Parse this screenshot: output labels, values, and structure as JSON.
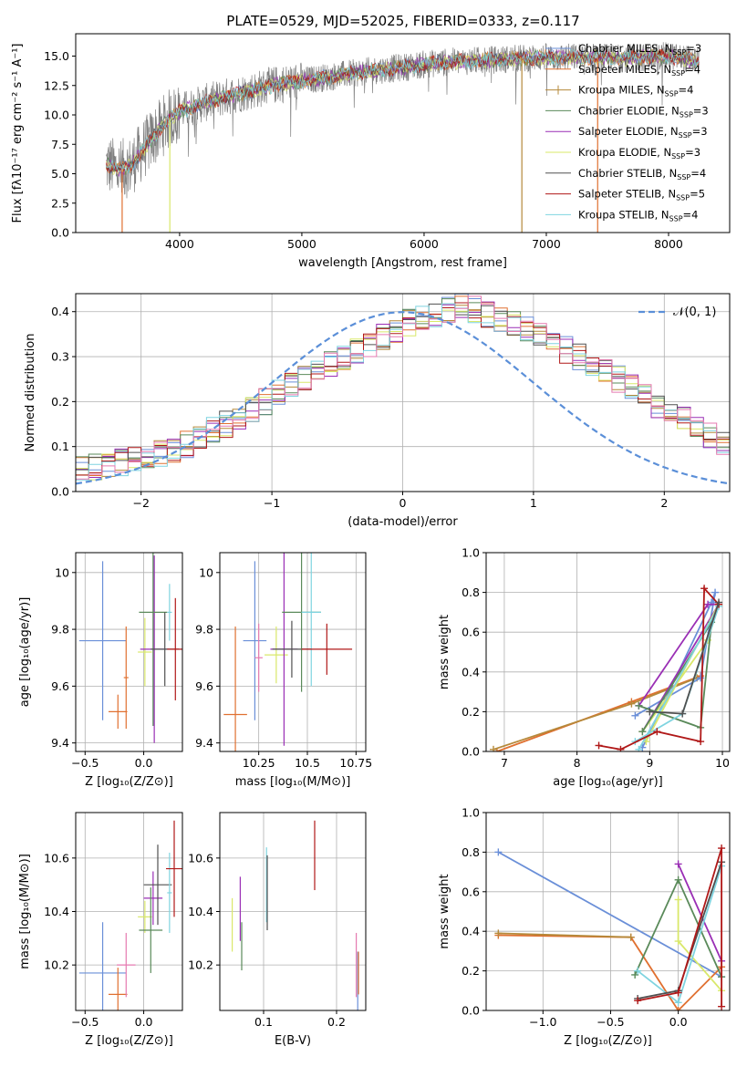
{
  "title": "PLATE=0529, MJD=52025, FIBERID=0333, z=0.117",
  "colors": {
    "chabrier_miles": "#6a8fd8",
    "salpeter_miles": "#e07030",
    "kroupa_miles": "#b5893a",
    "chabrier_elodie": "#5a8a5a",
    "salpeter_elodie": "#9a2fb5",
    "kroupa_elodie": "#d9e86a",
    "chabrier_stelib": "#505050",
    "salpeter_stelib": "#b01818",
    "kroupa_stelib": "#7fd4e0",
    "data": "#808080",
    "gaussian": "#5b8fd8",
    "pink": "#e57ab0",
    "grid": "#b0b0b0"
  },
  "chart_data": [
    {
      "id": "spectrum",
      "type": "line",
      "title": "PLATE=0529, MJD=52025, FIBERID=0333, z=0.117",
      "xlabel": "wavelength [Angstrom, rest frame]",
      "ylabel": "Flux [fλ10⁻¹⁷ erg cm⁻² s⁻¹ A⁻¹]",
      "xlim": [
        3150,
        8500
      ],
      "ylim": [
        0,
        16.9
      ],
      "xticks": [
        4000,
        5000,
        6000,
        7000,
        8000
      ],
      "yticks": [
        0.0,
        2.5,
        5.0,
        7.5,
        10.0,
        12.5,
        15.0
      ],
      "grid": false,
      "legend_position": "top-right",
      "continuum": {
        "x": [
          3400,
          3500,
          3600,
          3700,
          3800,
          3900,
          4000,
          4200,
          4400,
          4600,
          4800,
          5000,
          5200,
          5400,
          5600,
          5800,
          6000,
          6200,
          6400,
          6600,
          6800,
          7000,
          7200,
          7400,
          7600,
          7800,
          8000,
          8250
        ],
        "y": [
          5.8,
          5.3,
          5.6,
          7.0,
          8.3,
          9.5,
          10.3,
          11.0,
          11.6,
          12.1,
          12.6,
          12.9,
          13.2,
          13.5,
          13.8,
          14.0,
          14.3,
          14.5,
          14.6,
          14.7,
          14.8,
          14.9,
          14.9,
          14.9,
          14.8,
          14.9,
          15.0,
          14.6
        ]
      },
      "series": [
        {
          "name": "Chabrier MILES, N_SSP=3",
          "label_main": "Chabrier MILES, N",
          "label_sub": "SSP",
          "label_tail": "=3",
          "color_key": "chabrier_miles"
        },
        {
          "name": "Salpeter MILES, N_SSP=4",
          "label_main": "Salpeter MILES, N",
          "label_sub": "SSP",
          "label_tail": "=4",
          "color_key": "salpeter_miles"
        },
        {
          "name": "Kroupa MILES, N_SSP=4",
          "label_main": "Kroupa MILES, N",
          "label_sub": "SSP",
          "label_tail": "=4",
          "color_key": "kroupa_miles"
        },
        {
          "name": "Chabrier ELODIE, N_SSP=3",
          "label_main": "Chabrier ELODIE, N",
          "label_sub": "SSP",
          "label_tail": "=3",
          "color_key": "chabrier_elodie"
        },
        {
          "name": "Salpeter ELODIE, N_SSP=3",
          "label_main": "Salpeter ELODIE, N",
          "label_sub": "SSP",
          "label_tail": "=3",
          "color_key": "salpeter_elodie"
        },
        {
          "name": "Kroupa ELODIE, N_SSP=3",
          "label_main": "Kroupa ELODIE, N",
          "label_sub": "SSP",
          "label_tail": "=3",
          "color_key": "kroupa_elodie"
        },
        {
          "name": "Chabrier STELIB, N_SSP=4",
          "label_main": "Chabrier STELIB, N",
          "label_sub": "SSP",
          "label_tail": "=4",
          "color_key": "chabrier_stelib"
        },
        {
          "name": "Salpeter STELIB, N_SSP=5",
          "label_main": "Salpeter STELIB, N",
          "label_sub": "SSP",
          "label_tail": "=5",
          "color_key": "salpeter_stelib"
        },
        {
          "name": "Kroupa STELIB, N_SSP=4",
          "label_main": "Kroupa STELIB, N",
          "label_sub": "SSP",
          "label_tail": "=4",
          "color_key": "kroupa_stelib"
        }
      ],
      "drops": [
        {
          "x": 3530,
          "color_key": "salpeter_miles"
        },
        {
          "x": 3920,
          "color_key": "kroupa_elodie"
        },
        {
          "x": 6800,
          "color_key": "kroupa_miles"
        },
        {
          "x": 7420,
          "color_key": "salpeter_miles"
        }
      ]
    },
    {
      "id": "residuals",
      "type": "histogram",
      "xlabel": "(data-model)/error",
      "ylabel": "Normed distribution",
      "xlim": [
        -2.5,
        2.5
      ],
      "ylim": [
        0,
        0.44
      ],
      "xticks": [
        -2,
        -1,
        0,
        1,
        2
      ],
      "xtick_labels": [
        "−2",
        "−1",
        "0",
        "1",
        "2"
      ],
      "yticks": [
        0.0,
        0.1,
        0.2,
        0.3,
        0.4
      ],
      "grid": true,
      "legend": "𝒩(0, 1)",
      "bin_width": 0.1,
      "base_hist": [
        0.05,
        0.055,
        0.06,
        0.065,
        0.07,
        0.075,
        0.085,
        0.095,
        0.105,
        0.12,
        0.135,
        0.15,
        0.165,
        0.18,
        0.2,
        0.22,
        0.24,
        0.255,
        0.27,
        0.285,
        0.3,
        0.315,
        0.33,
        0.345,
        0.36,
        0.375,
        0.385,
        0.395,
        0.405,
        0.41,
        0.405,
        0.395,
        0.385,
        0.375,
        0.36,
        0.345,
        0.33,
        0.315,
        0.3,
        0.285,
        0.265,
        0.25,
        0.23,
        0.21,
        0.19,
        0.175,
        0.16,
        0.14,
        0.125,
        0.11,
        0.1
      ]
    },
    {
      "id": "age_vs_Z",
      "type": "errorbar",
      "xlabel": "Z [log₁₀(Z/Z⊙)]",
      "ylabel": "age  [log₁₀(age/yr)]",
      "xlim": [
        -0.58,
        0.33
      ],
      "ylim": [
        9.37,
        10.07
      ],
      "xticks": [
        -0.5,
        0.0
      ],
      "xtick_labels": [
        "−0.5",
        "0.0"
      ],
      "yticks": [
        9.4,
        9.6,
        9.8,
        10.0
      ],
      "grid": true,
      "points": [
        {
          "x": -0.35,
          "y": 9.76,
          "xerr": 0.2,
          "yerr": 0.28,
          "color_key": "chabrier_miles"
        },
        {
          "x": -0.22,
          "y": 9.51,
          "xerr": 0.08,
          "yerr": 0.06,
          "color_key": "salpeter_miles"
        },
        {
          "x": -0.15,
          "y": 9.63,
          "xerr": 0.02,
          "yerr": 0.18,
          "color_key": "salpeter_miles"
        },
        {
          "x": 0.01,
          "y": 9.72,
          "xerr": 0.06,
          "yerr": 0.12,
          "color_key": "kroupa_elodie"
        },
        {
          "x": 0.09,
          "y": 9.73,
          "xerr": 0.12,
          "yerr": 0.33,
          "color_key": "salpeter_elodie"
        },
        {
          "x": 0.08,
          "y": 9.86,
          "xerr": 0.12,
          "yerr": 0.4,
          "color_key": "chabrier_elodie"
        },
        {
          "x": 0.18,
          "y": 9.73,
          "xerr": 0.12,
          "yerr": 0.13,
          "color_key": "chabrier_stelib"
        },
        {
          "x": 0.22,
          "y": 9.86,
          "xerr": 0.02,
          "yerr": 0.1,
          "color_key": "kroupa_stelib"
        },
        {
          "x": 0.27,
          "y": 9.73,
          "xerr": 0.07,
          "yerr": 0.18,
          "color_key": "salpeter_stelib"
        }
      ]
    },
    {
      "id": "age_vs_mass",
      "type": "errorbar",
      "xlabel": "mass [log₁₀(M/M⊙)]",
      "ylabel": "",
      "xlim": [
        10.05,
        10.8
      ],
      "ylim": [
        9.37,
        10.07
      ],
      "xticks": [
        10.25,
        10.5,
        10.75
      ],
      "yticks": [
        9.4,
        9.6,
        9.8,
        10.0
      ],
      "grid": true,
      "points": [
        {
          "x": 10.13,
          "y": 9.5,
          "xerr": 0.06,
          "yerr": 0.31,
          "color_key": "salpeter_miles"
        },
        {
          "x": 10.23,
          "y": 9.76,
          "xerr": 0.06,
          "yerr": 0.28,
          "color_key": "chabrier_miles"
        },
        {
          "x": 10.25,
          "y": 9.7,
          "xerr": 0.02,
          "yerr": 0.12,
          "color_key": "pink"
        },
        {
          "x": 10.34,
          "y": 9.71,
          "xerr": 0.06,
          "yerr": 0.1,
          "color_key": "kroupa_elodie"
        },
        {
          "x": 10.38,
          "y": 9.73,
          "xerr": 0.07,
          "yerr": 0.34,
          "color_key": "salpeter_elodie"
        },
        {
          "x": 10.42,
          "y": 9.73,
          "xerr": 0.1,
          "yerr": 0.1,
          "color_key": "chabrier_stelib"
        },
        {
          "x": 10.47,
          "y": 9.86,
          "xerr": 0.1,
          "yerr": 0.28,
          "color_key": "chabrier_elodie"
        },
        {
          "x": 10.52,
          "y": 9.86,
          "xerr": 0.05,
          "yerr": 0.26,
          "color_key": "kroupa_stelib"
        },
        {
          "x": 10.6,
          "y": 9.73,
          "xerr": 0.13,
          "yerr": 0.09,
          "color_key": "salpeter_stelib"
        }
      ]
    },
    {
      "id": "mw_vs_age",
      "type": "line",
      "xlabel": "age  [log₁₀(age/yr)]",
      "ylabel": "mass weight",
      "xlim": [
        6.75,
        10.1
      ],
      "ylim": [
        0,
        1.0
      ],
      "xticks": [
        7,
        8,
        9,
        10
      ],
      "yticks": [
        0.0,
        0.2,
        0.4,
        0.6,
        0.8,
        1.0
      ],
      "grid": true,
      "series": [
        {
          "color_key": "salpeter_miles",
          "x": [
            6.9,
            8.75,
            9.7
          ],
          "y": [
            0.0,
            0.25,
            0.38
          ]
        },
        {
          "color_key": "kroupa_miles",
          "x": [
            6.85,
            8.75,
            9.65
          ],
          "y": [
            0.01,
            0.24,
            0.37
          ]
        },
        {
          "color_key": "chabrier_miles",
          "x": [
            8.8,
            9.7,
            9.9,
            9.85,
            8.9
          ],
          "y": [
            0.18,
            0.37,
            0.8,
            0.75,
            0.02
          ]
        },
        {
          "color_key": "salpeter_elodie",
          "x": [
            8.85,
            9.8,
            9.95,
            8.9
          ],
          "y": [
            0.23,
            0.74,
            0.74,
            0.1
          ]
        },
        {
          "color_key": "kroupa_elodie",
          "x": [
            8.9,
            9.8,
            9.95,
            8.95
          ],
          "y": [
            0.1,
            0.56,
            0.74,
            0.05
          ]
        },
        {
          "color_key": "chabrier_elodie",
          "x": [
            8.85,
            9.7,
            9.85,
            8.9
          ],
          "y": [
            0.23,
            0.12,
            0.65,
            0.1
          ]
        },
        {
          "color_key": "kroupa_stelib",
          "x": [
            8.8,
            9.45,
            9.95,
            8.85
          ],
          "y": [
            0.05,
            0.19,
            0.73,
            0.01
          ]
        },
        {
          "color_key": "salpeter_stelib",
          "x": [
            8.3,
            8.6,
            9.1,
            9.7,
            9.75,
            9.95
          ],
          "y": [
            0.03,
            0.01,
            0.1,
            0.05,
            0.82,
            0.74
          ]
        },
        {
          "color_key": "chabrier_stelib",
          "x": [
            9.0,
            9.45,
            9.95
          ],
          "y": [
            0.2,
            0.19,
            0.75
          ]
        }
      ]
    },
    {
      "id": "mass_vs_Z",
      "type": "errorbar",
      "xlabel": "Z [log₁₀(Z/Z⊙)]",
      "ylabel": "mass [log₁₀(M/M⊙)]",
      "xlim": [
        -0.58,
        0.33
      ],
      "ylim": [
        10.03,
        10.77
      ],
      "xticks": [
        -0.5,
        0.0
      ],
      "xtick_labels": [
        "−0.5",
        "0.0"
      ],
      "yticks": [
        10.2,
        10.4,
        10.6
      ],
      "grid": true,
      "points": [
        {
          "x": -0.35,
          "y": 10.17,
          "xerr": 0.2,
          "yerr": 0.19,
          "color_key": "chabrier_miles"
        },
        {
          "x": -0.22,
          "y": 10.09,
          "xerr": 0.08,
          "yerr": 0.1,
          "color_key": "salpeter_miles"
        },
        {
          "x": -0.15,
          "y": 10.2,
          "xerr": 0.08,
          "yerr": 0.12,
          "color_key": "pink"
        },
        {
          "x": 0.01,
          "y": 10.38,
          "xerr": 0.06,
          "yerr": 0.06,
          "color_key": "kroupa_elodie"
        },
        {
          "x": 0.08,
          "y": 10.45,
          "xerr": 0.08,
          "yerr": 0.1,
          "color_key": "salpeter_elodie"
        },
        {
          "x": 0.06,
          "y": 10.33,
          "xerr": 0.1,
          "yerr": 0.16,
          "color_key": "chabrier_elodie"
        },
        {
          "x": 0.12,
          "y": 10.5,
          "xerr": 0.12,
          "yerr": 0.15,
          "color_key": "chabrier_stelib"
        },
        {
          "x": 0.22,
          "y": 10.47,
          "xerr": 0.02,
          "yerr": 0.15,
          "color_key": "kroupa_stelib"
        },
        {
          "x": 0.26,
          "y": 10.56,
          "xerr": 0.07,
          "yerr": 0.18,
          "color_key": "salpeter_stelib"
        }
      ]
    },
    {
      "id": "mass_vs_ebv",
      "type": "errorbar",
      "xlabel": "E(B-V)",
      "ylabel": "",
      "xlim": [
        0.04,
        0.24
      ],
      "ylim": [
        10.03,
        10.77
      ],
      "xticks": [
        0.1,
        0.2
      ],
      "yticks": [
        10.2,
        10.4,
        10.6
      ],
      "grid": true,
      "points": [
        {
          "x": 0.057,
          "y": 10.35,
          "xerr": 0.0,
          "yerr": 0.1,
          "color_key": "kroupa_elodie"
        },
        {
          "x": 0.068,
          "y": 10.41,
          "xerr": 0.0,
          "yerr": 0.12,
          "color_key": "salpeter_elodie"
        },
        {
          "x": 0.07,
          "y": 10.27,
          "xerr": 0.0,
          "yerr": 0.09,
          "color_key": "chabrier_elodie"
        },
        {
          "x": 0.104,
          "y": 10.5,
          "xerr": 0.0,
          "yerr": 0.14,
          "color_key": "kroupa_stelib"
        },
        {
          "x": 0.105,
          "y": 10.47,
          "xerr": 0.0,
          "yerr": 0.14,
          "color_key": "chabrier_stelib"
        },
        {
          "x": 0.17,
          "y": 10.61,
          "xerr": 0.0,
          "yerr": 0.13,
          "color_key": "salpeter_stelib"
        },
        {
          "x": 0.227,
          "y": 10.2,
          "xerr": 0.0,
          "yerr": 0.12,
          "color_key": "pink"
        },
        {
          "x": 0.229,
          "y": 10.09,
          "xerr": 0.0,
          "yerr": 0.16,
          "color_key": "chabrier_miles"
        },
        {
          "x": 0.23,
          "y": 10.17,
          "xerr": 0.0,
          "yerr": 0.08,
          "color_key": "salpeter_miles"
        }
      ]
    },
    {
      "id": "mw_vs_Z",
      "type": "line",
      "xlabel": "Z [log₁₀(Z/Z⊙)]",
      "ylabel": "mass weight",
      "xlim": [
        -1.42,
        0.38
      ],
      "ylim": [
        0,
        1.0
      ],
      "xticks": [
        -1.0,
        -0.5,
        0.0
      ],
      "xtick_labels": [
        "−1.0",
        "−0.5",
        "0.0"
      ],
      "yticks": [
        0.0,
        0.2,
        0.4,
        0.6,
        0.8,
        1.0
      ],
      "grid": true,
      "series": [
        {
          "color_key": "chabrier_miles",
          "x": [
            -1.33,
            0.32
          ],
          "y": [
            0.8,
            0.17
          ]
        },
        {
          "color_key": "salpeter_miles",
          "x": [
            -1.33,
            -0.35,
            0.0,
            0.32
          ],
          "y": [
            0.38,
            0.37,
            0.0,
            0.22
          ]
        },
        {
          "color_key": "kroupa_miles",
          "x": [
            -1.33,
            -0.35
          ],
          "y": [
            0.39,
            0.37
          ]
        },
        {
          "color_key": "chabrier_elodie",
          "x": [
            -0.32,
            0.0,
            0.32
          ],
          "y": [
            0.18,
            0.66,
            0.17
          ]
        },
        {
          "color_key": "salpeter_elodie",
          "x": [
            0.0,
            0.32
          ],
          "y": [
            0.74,
            0.25
          ]
        },
        {
          "color_key": "kroupa_elodie",
          "x": [
            0.0,
            0.0,
            0.32
          ],
          "y": [
            0.56,
            0.35,
            0.1
          ]
        },
        {
          "color_key": "kroupa_stelib",
          "x": [
            -0.3,
            0.0,
            0.32
          ],
          "y": [
            0.2,
            0.04,
            0.73
          ]
        },
        {
          "color_key": "chabrier_stelib",
          "x": [
            -0.3,
            0.0,
            0.32
          ],
          "y": [
            0.06,
            0.1,
            0.75
          ]
        },
        {
          "color_key": "salpeter_stelib",
          "x": [
            -0.3,
            0.0,
            0.32,
            0.32
          ],
          "y": [
            0.05,
            0.09,
            0.82,
            0.02
          ]
        }
      ]
    }
  ]
}
